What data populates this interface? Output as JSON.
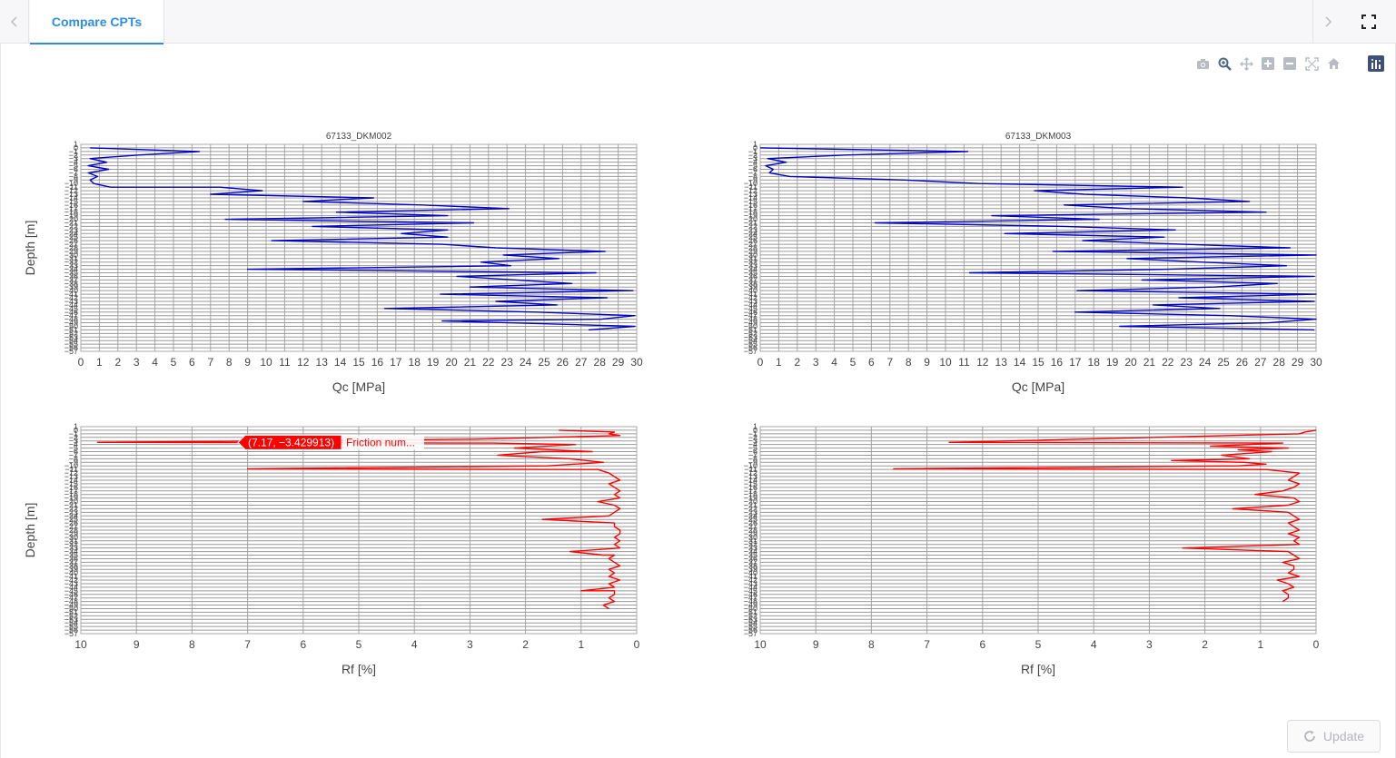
{
  "tabs": {
    "prev_icon": "chevron-left-icon",
    "next_icon": "chevron-right-icon",
    "items": [
      {
        "label": "Compare CPTs",
        "active": true
      }
    ],
    "fullscreen_icon": "fullscreen-icon"
  },
  "modebar": {
    "buttons": [
      "camera-icon",
      "zoom-icon",
      "pan-icon",
      "zoom-in-icon",
      "zoom-out-icon",
      "autoscale-icon",
      "reset-axes-icon"
    ],
    "active": "zoom-icon",
    "logo": "plotly-logo-icon"
  },
  "update_button": {
    "label": "Update",
    "icon": "refresh-icon",
    "disabled": true
  },
  "colors": {
    "qc": "#0000c8",
    "rf": "#ff0000",
    "accent": "#2e8ce6"
  },
  "chart_data": [
    {
      "type": "line",
      "title": "67133_DKM002",
      "xlabel": "Qc [MPa]",
      "ylabel": "Depth [m]",
      "xlim": [
        0,
        30
      ],
      "x_ticks": [
        0,
        1,
        2,
        3,
        4,
        5,
        6,
        7,
        8,
        9,
        10,
        11,
        12,
        13,
        14,
        15,
        16,
        17,
        18,
        19,
        20,
        21,
        22,
        23,
        24,
        25,
        26,
        27,
        28,
        29,
        30
      ],
      "ylim": [
        1,
        -57
      ],
      "y_reversed": true,
      "grid": true,
      "series": [
        {
          "color": "#0000c8",
          "x": [
            0.5,
            6.4,
            3.1,
            0.5,
            1.4,
            0.4,
            1.5,
            0.4,
            0.9,
            0.5,
            0.7,
            1.6,
            7.5,
            9.8,
            7.0,
            15.8,
            12.0,
            18.4,
            23.1,
            13.8,
            19.8,
            7.8,
            21.2,
            12.5,
            19.8,
            17.3,
            19.8,
            10.3,
            19.5,
            22.4,
            28.3,
            22.8,
            25.8,
            21.6,
            23.2,
            9.0,
            27.8,
            20.3,
            23.5,
            26.5,
            21.0,
            29.8,
            19.4,
            28.4,
            22.4,
            25.7,
            16.4,
            24.6,
            29.9,
            28.1,
            19.5,
            23.1,
            29.9,
            27.4
          ],
          "y": [
            0,
            -1,
            -2,
            -3,
            -4,
            -5,
            -6,
            -7,
            -8,
            -9,
            -10,
            -11,
            -11,
            -12,
            -13,
            -14,
            -15,
            -16,
            -17,
            -18,
            -19,
            -20,
            -21,
            -22,
            -23,
            -24,
            -25,
            -26,
            -27,
            -28,
            -29,
            -30,
            -31,
            -32,
            -33,
            -34,
            -35,
            -36,
            -37,
            -38,
            -39,
            -40,
            -41,
            -42,
            -43,
            -44,
            -45,
            -46,
            -47,
            -48,
            -48.5,
            -49,
            -50,
            -51
          ]
        }
      ]
    },
    {
      "type": "line",
      "title": "67133_DKM003",
      "xlabel": "Qc [MPa]",
      "ylabel": "",
      "xlim": [
        0,
        30
      ],
      "x_ticks": [
        0,
        1,
        2,
        3,
        4,
        5,
        6,
        7,
        8,
        9,
        10,
        11,
        12,
        13,
        14,
        15,
        16,
        17,
        18,
        19,
        20,
        21,
        22,
        23,
        24,
        25,
        26,
        27,
        28,
        29,
        30
      ],
      "ylim": [
        1,
        -57
      ],
      "y_reversed": true,
      "grid": true,
      "series": [
        {
          "color": "#0000c8",
          "x": [
            0,
            11.2,
            4.6,
            0.4,
            1.4,
            0.3,
            0.7,
            0.5,
            1.6,
            7.8,
            11.8,
            22.8,
            14.8,
            17.5,
            23.1,
            26.4,
            16.4,
            19.9,
            27.3,
            12.5,
            18.3,
            6.2,
            16.4,
            22.4,
            13.2,
            21.8,
            17.4,
            22.8,
            28.6,
            15.8,
            30.0,
            19.8,
            23.8,
            28.4,
            22.0,
            11.3,
            29.9,
            20.6,
            27.9,
            24.5,
            17.1,
            30.0,
            22.6,
            29.9,
            21.2,
            24.8,
            17.0,
            25.3,
            30.0,
            27.4,
            19.4,
            29.9
          ],
          "y": [
            0,
            -1,
            -2,
            -3,
            -4,
            -5,
            -6,
            -7,
            -8,
            -9,
            -10,
            -11,
            -12,
            -13,
            -14,
            -15,
            -16,
            -17,
            -18,
            -19,
            -20,
            -21,
            -22,
            -23,
            -24,
            -25,
            -26,
            -27,
            -28,
            -29,
            -30,
            -31,
            -32,
            -33,
            -34,
            -35,
            -36,
            -37,
            -38,
            -39,
            -40,
            -41,
            -42,
            -43,
            -44,
            -45,
            -46,
            -47,
            -48,
            -49,
            -50,
            -51
          ]
        }
      ]
    },
    {
      "type": "line",
      "title": "",
      "xlabel": "Rf [%]",
      "ylabel": "Depth [m]",
      "xlim": [
        10,
        0
      ],
      "x_reversed": true,
      "x_ticks": [
        10,
        9,
        8,
        7,
        6,
        5,
        4,
        3,
        2,
        1,
        0
      ],
      "ylim": [
        1,
        -57
      ],
      "y_reversed": true,
      "grid": true,
      "hover": {
        "point": "(7.17, −3.429913)",
        "trace": "Friction num..."
      },
      "series": [
        {
          "color": "#ff0000",
          "x": [
            1.4,
            0.4,
            0.5,
            0.3,
            2.9,
            9.7,
            2.6,
            1.1,
            2.2,
            1.5,
            0.8,
            1.7,
            2.5,
            1.2,
            0.6,
            1.6,
            7.0,
            0.7,
            0.5,
            0.4,
            0.3,
            0.5,
            0.4,
            0.3,
            0.4,
            0.3,
            0.7,
            0.4,
            0.3,
            0.4,
            0.5,
            1.7,
            0.4,
            0.4,
            0.3,
            0.3,
            0.4,
            0.3,
            0.4,
            0.3,
            1.2,
            0.6,
            0.4,
            0.5,
            0.4,
            0.3,
            0.5,
            0.4,
            0.5,
            0.3,
            0.5,
            0.4,
            1.0,
            0.4,
            0.4,
            0.5,
            0.4,
            0.6,
            0.5
          ],
          "y": [
            0,
            -0.5,
            -1,
            -1.5,
            -2.5,
            -3.4,
            -3.6,
            -4,
            -5,
            -5.5,
            -6,
            -6,
            -7,
            -8,
            -9,
            -10,
            -10.8,
            -11,
            -12,
            -13,
            -14,
            -15,
            -16,
            -17,
            -18,
            -19,
            -20,
            -21,
            -22,
            -23,
            -24,
            -25,
            -26,
            -27,
            -28,
            -29,
            -30,
            -31,
            -32,
            -33,
            -34,
            -35,
            -35,
            -36,
            -37,
            -38,
            -39,
            -40,
            -41,
            -42,
            -43,
            -44,
            -45,
            -45,
            -46,
            -47,
            -48,
            -49,
            -50
          ]
        }
      ]
    },
    {
      "type": "line",
      "title": "",
      "xlabel": "Rf [%]",
      "ylabel": "",
      "xlim": [
        10,
        0
      ],
      "x_reversed": true,
      "x_ticks": [
        10,
        9,
        8,
        7,
        6,
        5,
        4,
        3,
        2,
        1,
        0
      ],
      "ylim": [
        1,
        -57
      ],
      "y_reversed": true,
      "grid": true,
      "series": [
        {
          "color": "#ff0000",
          "x": [
            0,
            0.2,
            0.3,
            6.6,
            0.6,
            1.9,
            0.5,
            1.4,
            0.8,
            1.7,
            1.2,
            2.6,
            1.3,
            0.9,
            1.4,
            7.6,
            0.9,
            0.3,
            0.4,
            0.5,
            0.3,
            0.4,
            0.6,
            1.1,
            0.4,
            0.3,
            0.5,
            1.5,
            0.5,
            0.4,
            0.3,
            0.5,
            0.4,
            0.3,
            0.5,
            0.3,
            0.4,
            0.3,
            2.4,
            0.5,
            0.4,
            0.3,
            0.6,
            0.4,
            0.4,
            0.5,
            0.3,
            0.7,
            0.5,
            0.4,
            0.6,
            0.5,
            0.5,
            0.6
          ],
          "y": [
            0,
            -0.5,
            -1,
            -3.4,
            -3.6,
            -4.5,
            -5,
            -5.5,
            -6,
            -7,
            -8,
            -8.5,
            -9,
            -9.5,
            -10,
            -10.8,
            -11,
            -12,
            -13,
            -14,
            -15,
            -16,
            -17,
            -18,
            -19,
            -20,
            -21,
            -22,
            -23,
            -24,
            -25,
            -26,
            -27,
            -28,
            -29,
            -30,
            -31,
            -32,
            -33,
            -34,
            -35,
            -36,
            -37,
            -38,
            -39,
            -40,
            -41,
            -42,
            -43,
            -44,
            -45,
            -46,
            -47,
            -48
          ]
        }
      ]
    }
  ]
}
